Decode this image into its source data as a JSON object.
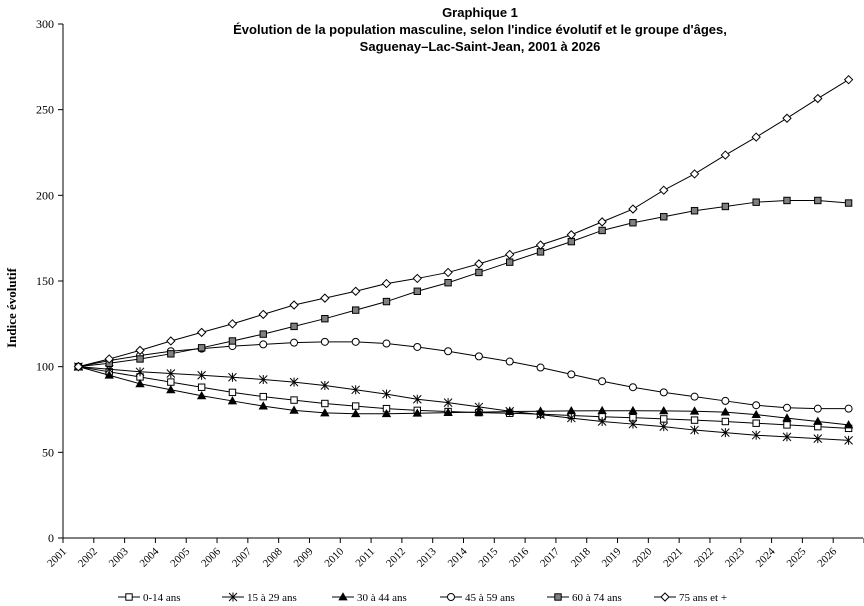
{
  "chart_data": {
    "type": "line",
    "title": "Graphique 1",
    "subtitle_lines": [
      "Évolution de la population masculine, selon l'indice évolutif et le groupe d'âges,",
      "Saguenay–Lac-Saint-Jean, 2001 à 2026"
    ],
    "xlabel": "",
    "ylabel": "Indice évolutif",
    "ylim": [
      0,
      300
    ],
    "yticks": [
      "0",
      "50",
      "100",
      "150",
      "200",
      "250",
      "300"
    ],
    "categories": [
      "2001",
      "2002",
      "2003",
      "2004",
      "2005",
      "2006",
      "2007",
      "2008",
      "2009",
      "2010",
      "2011",
      "2012",
      "2013",
      "2014",
      "2015",
      "2016",
      "2017",
      "2018",
      "2019",
      "2020",
      "2021",
      "2022",
      "2023",
      "2024",
      "2025",
      "2026"
    ],
    "grid": false,
    "legend": "bottom",
    "series": [
      {
        "name": "0-14 ans",
        "marker": "square-open",
        "color": "#000000",
        "values": [
          100,
          97,
          94,
          91,
          88,
          85,
          82.5,
          80.5,
          78.5,
          77,
          75.5,
          74.5,
          73.8,
          73.2,
          72.8,
          72.3,
          71.5,
          70.8,
          70.2,
          69.5,
          68.8,
          68,
          67,
          66,
          65,
          64
        ]
      },
      {
        "name": "15 à 29 ans",
        "marker": "asterisk",
        "color": "#000000",
        "values": [
          100,
          98.5,
          97,
          96,
          95,
          93.8,
          92.5,
          91,
          89,
          86.5,
          84,
          81,
          79,
          76.5,
          74,
          72,
          70,
          68,
          66.5,
          65,
          63,
          61.5,
          60,
          59,
          58,
          57
        ]
      },
      {
        "name": "30 à 44 ans",
        "marker": "triangle-filled",
        "color": "#000000",
        "values": [
          100,
          95,
          90,
          86.5,
          83,
          80,
          77,
          74.5,
          73,
          72.5,
          72.5,
          72.8,
          73.2,
          73.5,
          73.8,
          74,
          74.2,
          74.3,
          74.3,
          74.2,
          74,
          73.5,
          72,
          70,
          68,
          66
        ]
      },
      {
        "name": "45 à 59 ans",
        "marker": "circle-open",
        "color": "#000000",
        "values": [
          100,
          103.5,
          106.5,
          109,
          110.5,
          112,
          113,
          114,
          114.5,
          114.5,
          113.5,
          111.5,
          109,
          106,
          103,
          99.5,
          95.5,
          91.5,
          88,
          85,
          82.5,
          80,
          77.5,
          76,
          75.5,
          75.5
        ]
      },
      {
        "name": "60 à 74 ans",
        "marker": "square-filled",
        "color": "#808080",
        "values": [
          100,
          102,
          104.5,
          107.5,
          111,
          115,
          119,
          123.5,
          128,
          133,
          138,
          144,
          149,
          155,
          161,
          167,
          173,
          179.5,
          184,
          187.5,
          191,
          193.5,
          196,
          197,
          197,
          195.5
        ]
      },
      {
        "name": "75 ans et +",
        "marker": "diamond-open",
        "color": "#000000",
        "values": [
          100,
          104.5,
          109.5,
          115,
          120,
          125,
          130.5,
          136,
          140,
          144,
          148.5,
          151.5,
          155,
          160,
          165.5,
          171,
          177,
          184.5,
          192,
          203,
          212.5,
          223.5,
          234,
          245,
          256.5,
          267.5
        ]
      }
    ]
  }
}
